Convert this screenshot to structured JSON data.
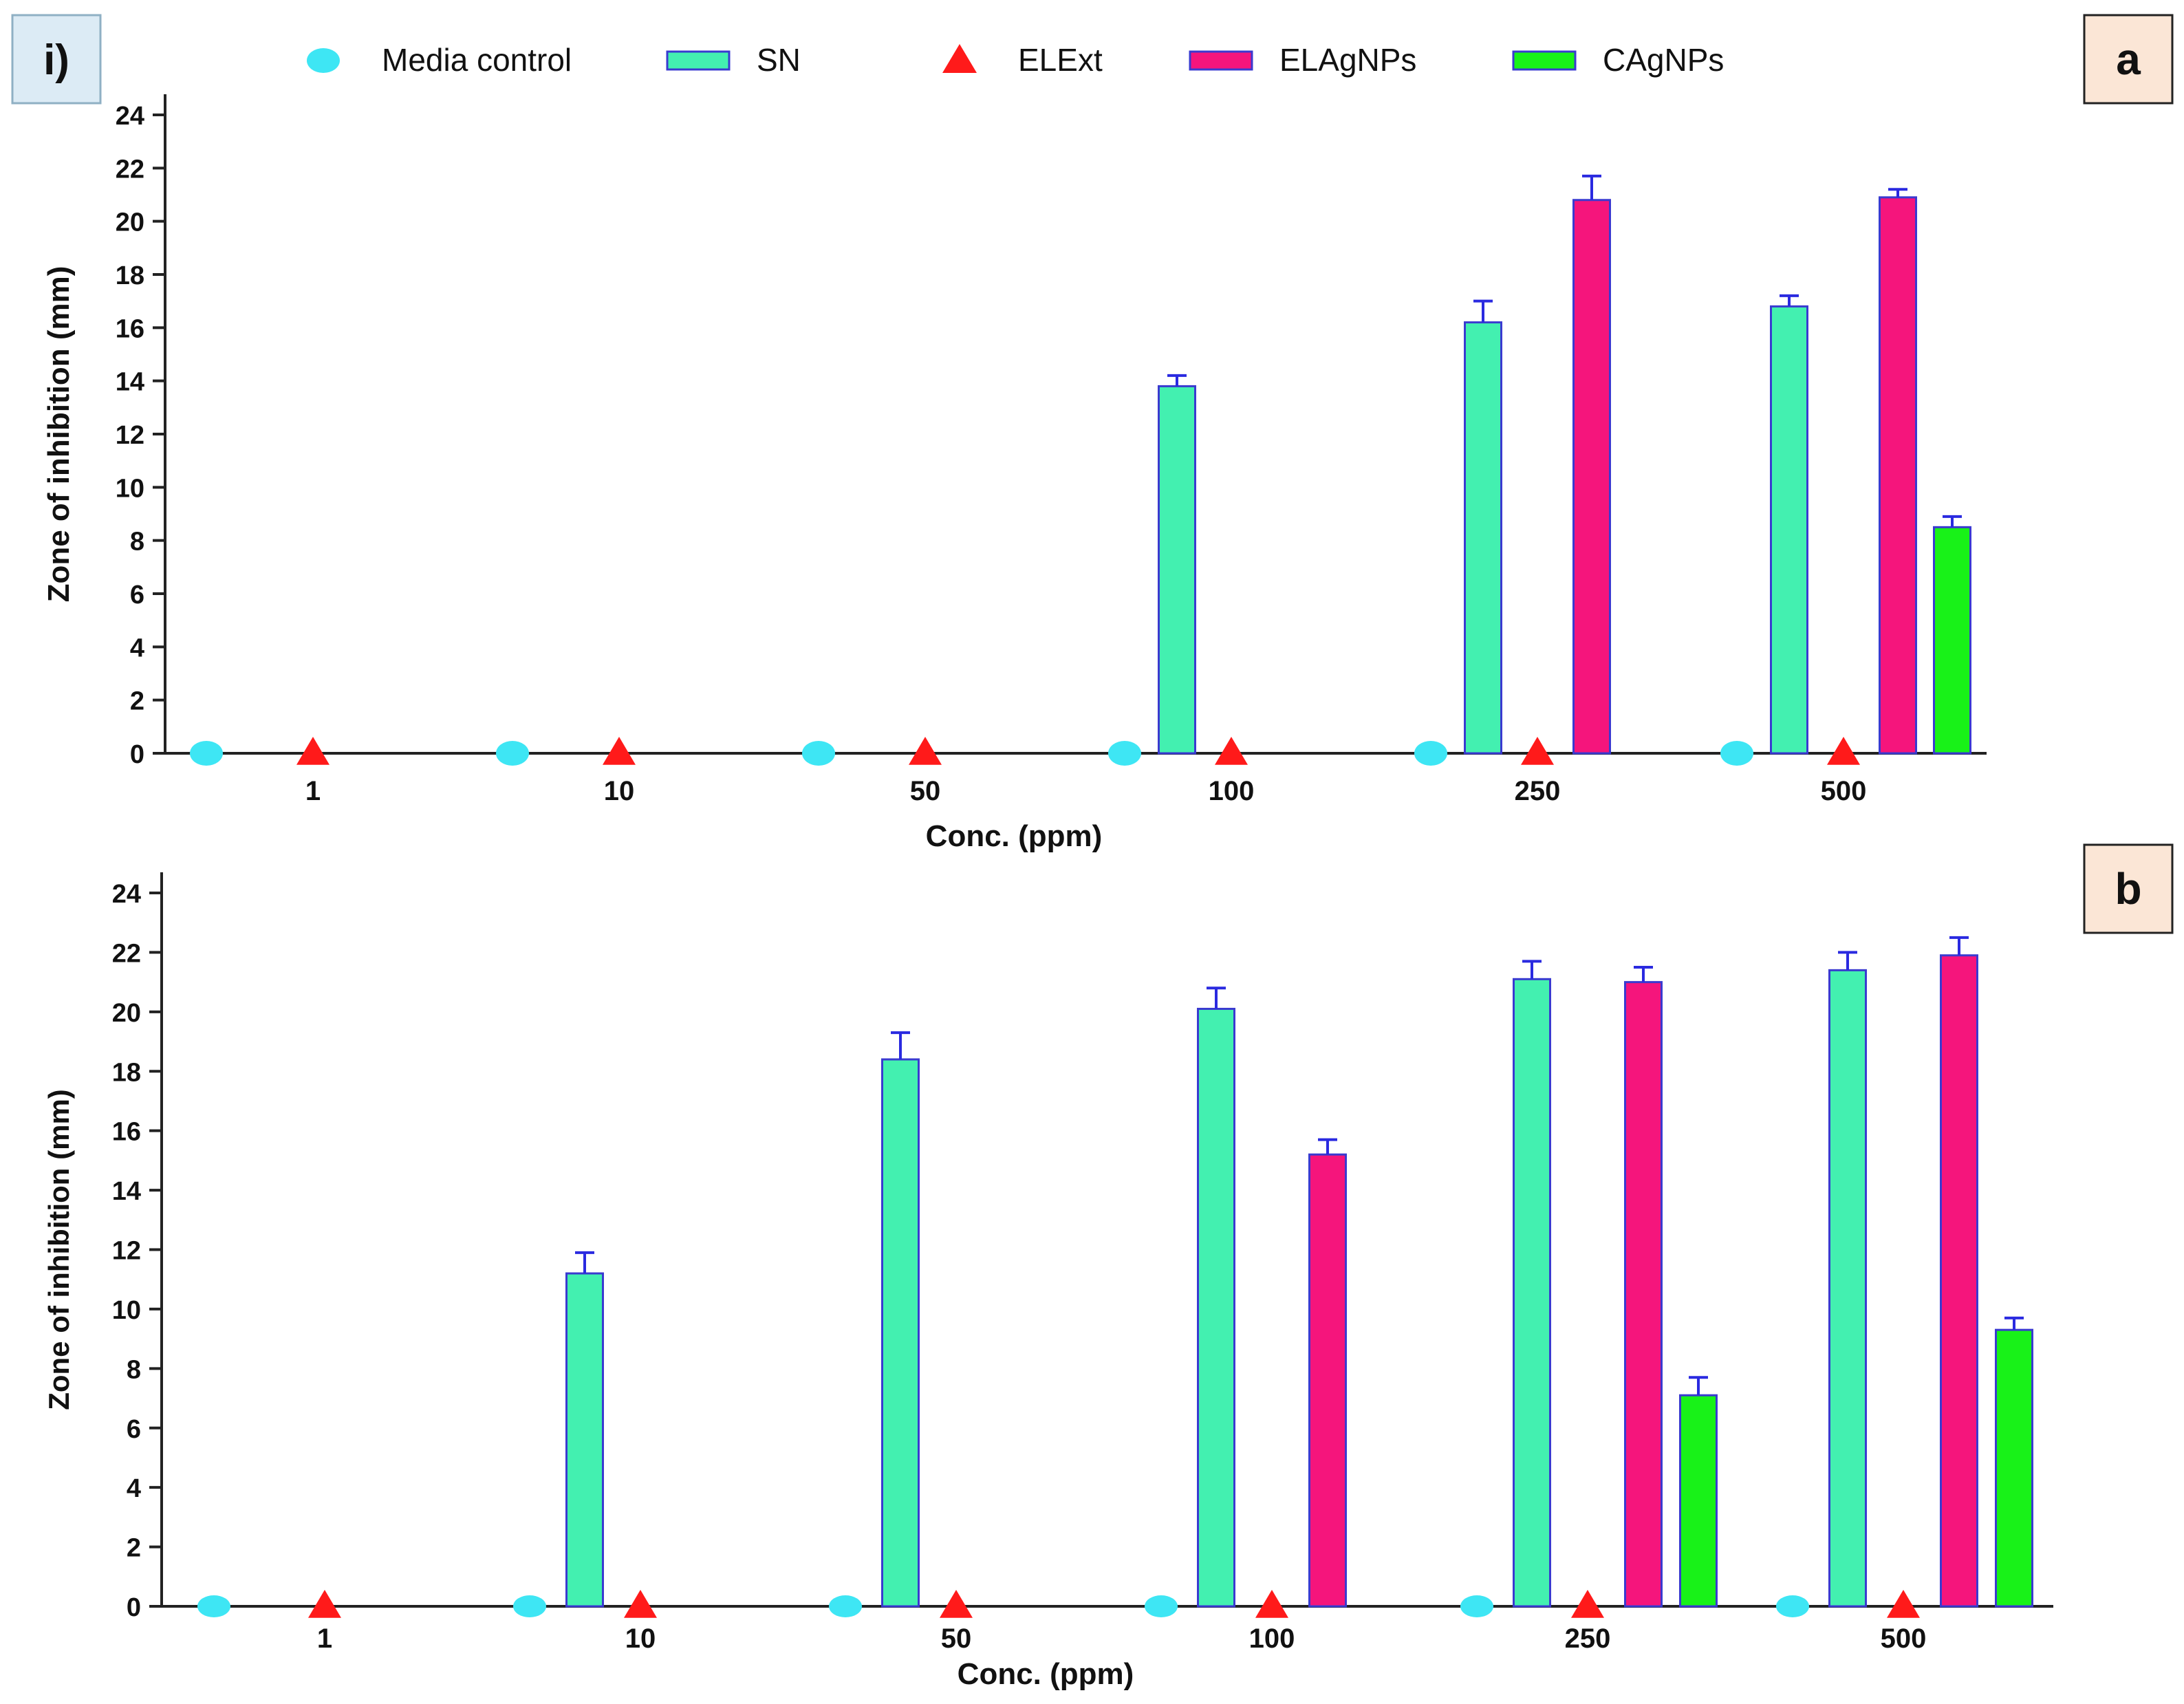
{
  "figure_label": "i)",
  "colors": {
    "media_control": "#3ee6f4",
    "sn": "#43f0b0",
    "elext": "#ff1a1a",
    "elagnps": "#f5157c",
    "cagnps": "#18f218",
    "bar_outline": "#3a3ad0",
    "error_bar": "#2a2ae0",
    "panel_label_bg": "#fbe6d6",
    "figure_label_bg": "#dcebf5"
  },
  "legend": {
    "items": [
      {
        "label": "Media control",
        "marker": "ellipse-marker",
        "color_key": "media_control"
      },
      {
        "label": "SN",
        "marker": "bar-swatch",
        "color_key": "sn"
      },
      {
        "label": "ELExt",
        "marker": "triangle-marker",
        "color_key": "elext"
      },
      {
        "label": "ELAgNPs",
        "marker": "bar-swatch",
        "color_key": "elagnps"
      },
      {
        "label": "CAgNPs",
        "marker": "bar-swatch",
        "color_key": "cagnps"
      }
    ]
  },
  "chart_data": [
    {
      "type": "bar",
      "panel_label": "a",
      "title": "",
      "xlabel": "Conc. (ppm)",
      "ylabel": "Zone of inhibition (mm)",
      "ylim": [
        0,
        24
      ],
      "yticks": [
        0,
        2,
        4,
        6,
        8,
        10,
        12,
        14,
        16,
        18,
        20,
        22,
        24
      ],
      "categories": [
        "1",
        "10",
        "50",
        "100",
        "250",
        "500"
      ],
      "series": [
        {
          "name": "Media control",
          "style": "ellipse",
          "values": [
            0,
            0,
            0,
            0,
            0,
            0
          ],
          "errors": [
            0,
            0,
            0,
            0,
            0,
            0
          ]
        },
        {
          "name": "SN",
          "style": "bar",
          "values": [
            0,
            0,
            0,
            13.8,
            16.2,
            16.8
          ],
          "errors": [
            0,
            0,
            0,
            0.4,
            0.8,
            0.4
          ]
        },
        {
          "name": "ELExt",
          "style": "triangle",
          "values": [
            0,
            0,
            0,
            0,
            0,
            0
          ],
          "errors": [
            0,
            0,
            0,
            0,
            0,
            0
          ]
        },
        {
          "name": "ELAgNPs",
          "style": "bar",
          "values": [
            0,
            0,
            0,
            0,
            20.8,
            20.9
          ],
          "errors": [
            0,
            0,
            0,
            0,
            0.9,
            0.3
          ]
        },
        {
          "name": "CAgNPs",
          "style": "bar",
          "values": [
            0,
            0,
            0,
            0,
            0,
            8.5
          ],
          "errors": [
            0,
            0,
            0,
            0,
            0,
            0.4
          ]
        }
      ]
    },
    {
      "type": "bar",
      "panel_label": "b",
      "title": "",
      "xlabel": "Conc. (ppm)",
      "ylabel": "Zone of inhibition (mm)",
      "ylim": [
        0,
        24
      ],
      "yticks": [
        0,
        2,
        4,
        6,
        8,
        10,
        12,
        14,
        16,
        18,
        20,
        22,
        24
      ],
      "categories": [
        "1",
        "10",
        "50",
        "100",
        "250",
        "500"
      ],
      "series": [
        {
          "name": "Media control",
          "style": "ellipse",
          "values": [
            0,
            0,
            0,
            0,
            0,
            0
          ],
          "errors": [
            0,
            0,
            0,
            0,
            0,
            0
          ]
        },
        {
          "name": "SN",
          "style": "bar",
          "values": [
            0,
            11.2,
            18.4,
            20.1,
            21.1,
            21.4
          ],
          "errors": [
            0,
            0.7,
            0.9,
            0.7,
            0.6,
            0.6
          ]
        },
        {
          "name": "ELExt",
          "style": "triangle",
          "values": [
            0,
            0,
            0,
            0,
            0,
            0
          ],
          "errors": [
            0,
            0,
            0,
            0,
            0,
            0
          ]
        },
        {
          "name": "ELAgNPs",
          "style": "bar",
          "values": [
            0,
            0,
            0,
            15.2,
            21.0,
            21.9
          ],
          "errors": [
            0,
            0,
            0,
            0.5,
            0.5,
            0.6
          ]
        },
        {
          "name": "CAgNPs",
          "style": "bar",
          "values": [
            0,
            0,
            0,
            0,
            7.1,
            9.3
          ],
          "errors": [
            0,
            0,
            0,
            0,
            0.6,
            0.4
          ]
        }
      ]
    }
  ]
}
